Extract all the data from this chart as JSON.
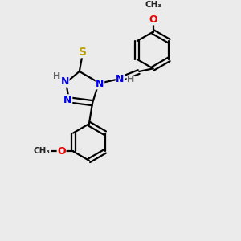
{
  "bg_color": "#ebebeb",
  "atom_colors": {
    "N": "#0000ee",
    "S": "#b8a000",
    "O": "#ee0000",
    "C": "#000000",
    "H": "#606060"
  },
  "bond_color": "#000000",
  "bond_width": 1.6,
  "figsize": [
    3.0,
    3.0
  ],
  "dpi": 100
}
